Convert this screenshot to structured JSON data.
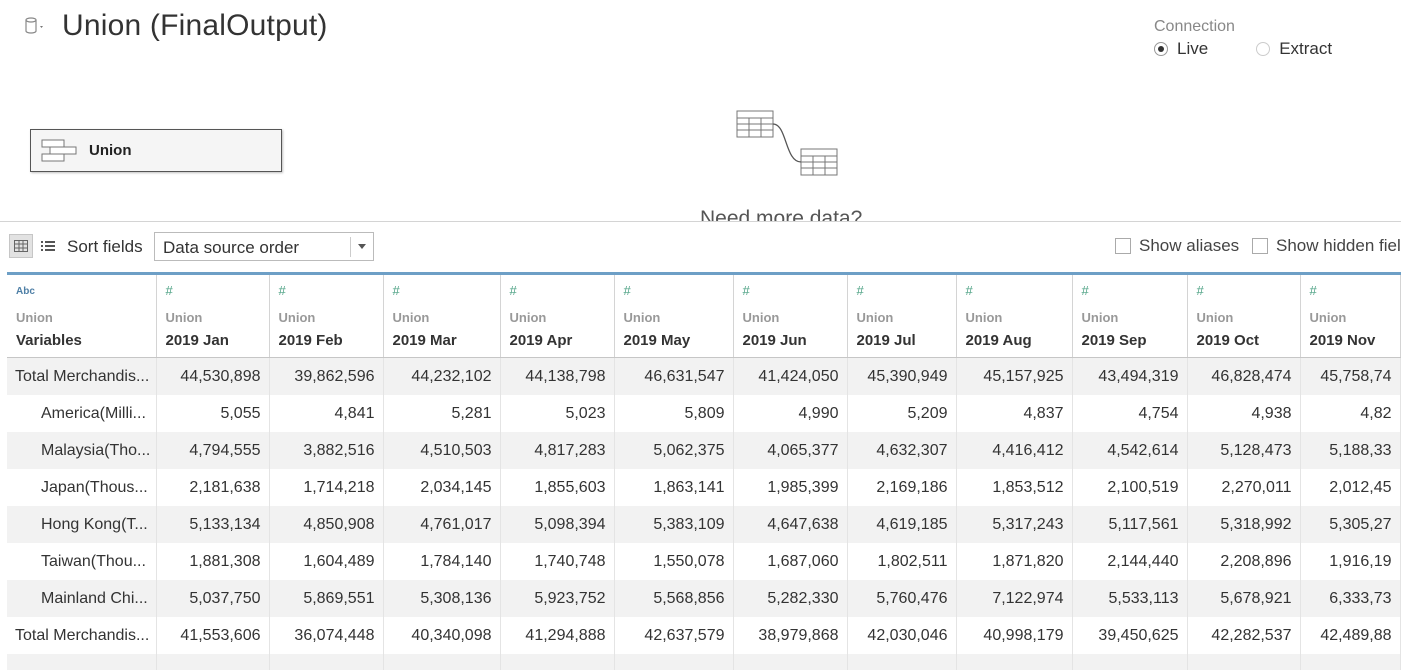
{
  "datasource": {
    "title": "Union (FinalOutput)",
    "icon": "database-icon"
  },
  "connection": {
    "label": "Connection",
    "live_label": "Live",
    "extract_label": "Extract",
    "selected": "Live"
  },
  "canvas": {
    "union_node_label": "Union",
    "more_data_text": "Need more data?"
  },
  "toolbar": {
    "sort_label": "Sort fields",
    "sort_value": "Data source order",
    "show_aliases": "Show aliases",
    "show_hidden": "Show hidden fiel"
  },
  "grid": {
    "columns": [
      {
        "type_icon": "Abc",
        "source": "Union",
        "name": "Variables"
      },
      {
        "type_icon": "#",
        "source": "Union",
        "name": "2019 Jan"
      },
      {
        "type_icon": "#",
        "source": "Union",
        "name": "2019 Feb"
      },
      {
        "type_icon": "#",
        "source": "Union",
        "name": "2019 Mar"
      },
      {
        "type_icon": "#",
        "source": "Union",
        "name": "2019 Apr"
      },
      {
        "type_icon": "#",
        "source": "Union",
        "name": "2019 May"
      },
      {
        "type_icon": "#",
        "source": "Union",
        "name": "2019 Jun"
      },
      {
        "type_icon": "#",
        "source": "Union",
        "name": "2019 Jul"
      },
      {
        "type_icon": "#",
        "source": "Union",
        "name": "2019 Aug"
      },
      {
        "type_icon": "#",
        "source": "Union",
        "name": "2019 Sep"
      },
      {
        "type_icon": "#",
        "source": "Union",
        "name": "2019 Oct"
      },
      {
        "type_icon": "#",
        "source": "Union",
        "name": "2019 Nov"
      }
    ],
    "rows": [
      {
        "indent": false,
        "cells": [
          "Total Merchandis...",
          "44,530,898",
          "39,862,596",
          "44,232,102",
          "44,138,798",
          "46,631,547",
          "41,424,050",
          "45,390,949",
          "45,157,925",
          "43,494,319",
          "46,828,474",
          "45,758,74"
        ]
      },
      {
        "indent": true,
        "cells": [
          "America(Milli...",
          "5,055",
          "4,841",
          "5,281",
          "5,023",
          "5,809",
          "4,990",
          "5,209",
          "4,837",
          "4,754",
          "4,938",
          "4,82"
        ]
      },
      {
        "indent": true,
        "cells": [
          "Malaysia(Tho...",
          "4,794,555",
          "3,882,516",
          "4,510,503",
          "4,817,283",
          "5,062,375",
          "4,065,377",
          "4,632,307",
          "4,416,412",
          "4,542,614",
          "5,128,473",
          "5,188,33"
        ]
      },
      {
        "indent": true,
        "cells": [
          "Japan(Thous...",
          "2,181,638",
          "1,714,218",
          "2,034,145",
          "1,855,603",
          "1,863,141",
          "1,985,399",
          "2,169,186",
          "1,853,512",
          "2,100,519",
          "2,270,011",
          "2,012,45"
        ]
      },
      {
        "indent": true,
        "cells": [
          "Hong Kong(T...",
          "5,133,134",
          "4,850,908",
          "4,761,017",
          "5,098,394",
          "5,383,109",
          "4,647,638",
          "4,619,185",
          "5,317,243",
          "5,117,561",
          "5,318,992",
          "5,305,27"
        ]
      },
      {
        "indent": true,
        "cells": [
          "Taiwan(Thou...",
          "1,881,308",
          "1,604,489",
          "1,784,140",
          "1,740,748",
          "1,550,078",
          "1,687,060",
          "1,802,511",
          "1,871,820",
          "2,144,440",
          "2,208,896",
          "1,916,19"
        ]
      },
      {
        "indent": true,
        "cells": [
          "Mainland Chi...",
          "5,037,750",
          "5,869,551",
          "5,308,136",
          "5,923,752",
          "5,568,856",
          "5,282,330",
          "5,760,476",
          "7,122,974",
          "5,533,113",
          "5,678,921",
          "6,333,73"
        ]
      },
      {
        "indent": false,
        "cells": [
          "Total Merchandis...",
          "41,553,606",
          "36,074,448",
          "40,340,098",
          "41,294,888",
          "42,637,579",
          "38,979,868",
          "42,030,046",
          "40,998,179",
          "39,450,625",
          "42,282,537",
          "42,489,88"
        ]
      },
      {
        "indent": false,
        "cells": [
          "",
          "",
          "",
          "",
          "",
          "",
          "",
          "",
          "",
          "",
          "",
          ""
        ]
      }
    ]
  }
}
